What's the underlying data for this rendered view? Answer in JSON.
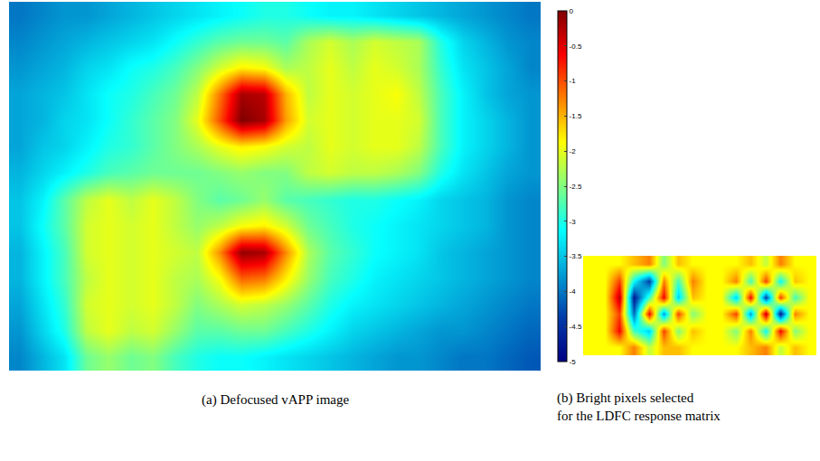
{
  "chart_data": [
    {
      "type": "heatmap",
      "title": "(a) Defocused vAPP image",
      "color": "Jet",
      "tick_labels": false,
      "zlim": [
        -5,
        0
      ],
      "zticks": [
        0,
        -0.5,
        -1,
        -1.5,
        -2,
        -2.5,
        -3,
        -3.5,
        -4,
        -4.5,
        -5
      ],
      "z": [
        [
          -4.0,
          -3.9,
          -3.8,
          -3.8,
          -3.7,
          -3.6,
          -3.5,
          -3.4,
          -3.3,
          -3.2,
          -3.1,
          -3.0,
          -3.0,
          -3.1,
          -3.2,
          -3.2,
          -3.3,
          -3.4,
          -3.5,
          -3.6,
          -3.7,
          -3.8,
          -3.9,
          -4.0
        ],
        [
          -3.9,
          -3.8,
          -3.7,
          -3.6,
          -3.5,
          -3.4,
          -3.3,
          -3.1,
          -2.9,
          -2.7,
          -2.6,
          -2.6,
          -2.7,
          -2.3,
          -2.1,
          -2.3,
          -2.1,
          -2.2,
          -2.3,
          -3.0,
          -3.4,
          -3.6,
          -3.8,
          -3.9
        ],
        [
          -3.8,
          -3.7,
          -3.6,
          -3.4,
          -3.3,
          -3.1,
          -3.0,
          -2.8,
          -2.5,
          -2.1,
          -1.8,
          -1.9,
          -2.3,
          -2.2,
          -2.0,
          -2.2,
          -2.0,
          -2.1,
          -2.3,
          -2.9,
          -3.3,
          -3.5,
          -3.7,
          -3.9
        ],
        [
          -3.7,
          -3.6,
          -3.5,
          -3.3,
          -3.1,
          -3.0,
          -2.8,
          -2.6,
          -2.2,
          -1.2,
          -0.2,
          -0.3,
          -1.5,
          -2.2,
          -2.0,
          -2.1,
          -2.0,
          -1.9,
          -2.2,
          -2.8,
          -3.2,
          -3.5,
          -3.7,
          -3.8
        ],
        [
          -3.7,
          -3.6,
          -3.4,
          -3.3,
          -3.1,
          -2.9,
          -2.7,
          -2.5,
          -2.0,
          -1.0,
          0,
          -0.2,
          -1.4,
          -2.1,
          -2.0,
          -2.1,
          -2.0,
          -2.0,
          -2.1,
          -2.8,
          -3.2,
          -3.4,
          -3.6,
          -3.8
        ],
        [
          -3.7,
          -3.5,
          -3.4,
          -3.2,
          -3.0,
          -2.9,
          -2.7,
          -2.5,
          -2.3,
          -2.0,
          -1.8,
          -1.9,
          -2.1,
          -2.2,
          -2.0,
          -2.1,
          -2.0,
          -2.0,
          -2.2,
          -2.8,
          -3.2,
          -3.4,
          -3.6,
          -3.8
        ],
        [
          -3.6,
          -3.4,
          -3.2,
          -3.0,
          -2.8,
          -2.7,
          -2.6,
          -2.6,
          -2.6,
          -2.5,
          -2.4,
          -2.5,
          -2.5,
          -2.2,
          -2.1,
          -2.2,
          -2.2,
          -2.3,
          -2.5,
          -3.0,
          -3.3,
          -3.5,
          -3.7,
          -3.8
        ],
        [
          -3.5,
          -3.2,
          -2.7,
          -2.2,
          -2.0,
          -2.2,
          -2.0,
          -2.2,
          -2.5,
          -2.7,
          -2.6,
          -2.4,
          -2.7,
          -2.8,
          -2.9,
          -3.0,
          -3.0,
          -3.1,
          -3.2,
          -3.4,
          -3.5,
          -3.6,
          -3.8,
          -3.9
        ],
        [
          -3.5,
          -3.1,
          -2.7,
          -2.1,
          -2.0,
          -2.1,
          -2.0,
          -2.2,
          -2.4,
          -2.2,
          -1.9,
          -1.8,
          -2.1,
          -2.6,
          -2.8,
          -3.0,
          -3.1,
          -3.2,
          -3.3,
          -3.4,
          -3.5,
          -3.6,
          -3.8,
          -3.9
        ],
        [
          -3.6,
          -3.2,
          -2.8,
          -2.1,
          -2.0,
          -2.1,
          -2.0,
          -2.1,
          -2.2,
          -1.3,
          -0.1,
          -0.2,
          -1.3,
          -2.3,
          -2.7,
          -2.9,
          -3.1,
          -3.2,
          -3.3,
          -3.5,
          -3.6,
          -3.7,
          -3.8,
          -3.9
        ],
        [
          -3.6,
          -3.2,
          -2.8,
          -2.2,
          -2.0,
          -2.1,
          -2.0,
          -2.2,
          -2.3,
          -1.9,
          -1.1,
          -1.2,
          -1.8,
          -2.4,
          -2.8,
          -3.0,
          -3.2,
          -3.3,
          -3.4,
          -3.5,
          -3.6,
          -3.7,
          -3.8,
          -3.9
        ],
        [
          -3.7,
          -3.3,
          -2.9,
          -2.1,
          -2.0,
          -2.1,
          -2.0,
          -2.2,
          -2.5,
          -2.3,
          -2.1,
          -2.2,
          -2.4,
          -2.7,
          -3.0,
          -3.2,
          -3.3,
          -3.4,
          -3.5,
          -3.6,
          -3.7,
          -3.8,
          -3.9,
          -4.0
        ],
        [
          -3.8,
          -3.4,
          -3.0,
          -2.2,
          -2.0,
          -2.2,
          -2.1,
          -2.4,
          -2.7,
          -2.7,
          -2.6,
          -2.6,
          -2.8,
          -3.0,
          -3.2,
          -3.4,
          -3.5,
          -3.6,
          -3.7,
          -3.8,
          -3.8,
          -3.9,
          -4.0,
          -4.1
        ],
        [
          -3.9,
          -3.6,
          -3.3,
          -2.6,
          -2.4,
          -2.6,
          -2.5,
          -2.8,
          -3.0,
          -3.1,
          -3.1,
          -3.2,
          -3.3,
          -3.4,
          -3.5,
          -3.6,
          -3.7,
          -3.8,
          -3.8,
          -3.9,
          -4.0,
          -4.0,
          -4.1,
          -4.2
        ]
      ]
    },
    {
      "type": "heatmap",
      "title": "(b) Bright pixels selected for the LDFC response matrix",
      "color": "Jet",
      "tick_labels": false,
      "zlim": [
        -1,
        0.6
      ],
      "z": [
        [
          0,
          0,
          0,
          0.1,
          0.2,
          -0.2,
          0.1,
          0,
          0,
          0,
          0,
          0.1,
          -0.1,
          0.2,
          0,
          0
        ],
        [
          0,
          0,
          0.3,
          -0.4,
          -0.8,
          0.2,
          -0.3,
          0.2,
          0,
          0,
          0.2,
          -0.3,
          0.3,
          -0.4,
          0.1,
          0
        ],
        [
          0,
          0,
          0.5,
          -0.9,
          -0.3,
          0.4,
          -0.5,
          0.1,
          0,
          0,
          -0.5,
          0.4,
          -0.8,
          0.3,
          -0.3,
          0
        ],
        [
          0,
          0,
          0.3,
          -0.7,
          0.4,
          -0.6,
          0.3,
          -0.2,
          0,
          0,
          0.3,
          -0.6,
          0.5,
          -0.9,
          0.2,
          0
        ],
        [
          0,
          0,
          0.4,
          -0.3,
          -0.5,
          0.3,
          -0.2,
          0.1,
          0,
          0,
          -0.2,
          0.2,
          -0.4,
          0.4,
          -0.2,
          0
        ],
        [
          0,
          0,
          0,
          0.2,
          -0.1,
          0.1,
          0.1,
          0,
          0,
          0,
          0,
          0.1,
          0.2,
          -0.1,
          0.1,
          0
        ]
      ]
    }
  ]
}
